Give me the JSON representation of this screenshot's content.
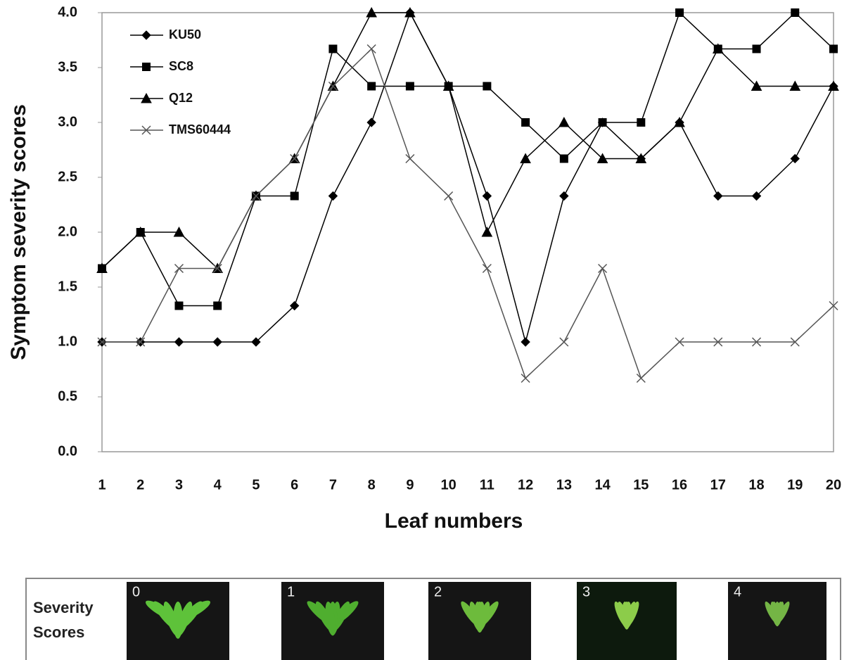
{
  "chart_data": {
    "type": "line",
    "x_label": "Leaf numbers",
    "y_label": "Symptom severity scores",
    "categories": [
      "1",
      "2",
      "3",
      "4",
      "5",
      "6",
      "7",
      "8",
      "9",
      "10",
      "11",
      "12",
      "13",
      "14",
      "15",
      "16",
      "17",
      "18",
      "19",
      "20"
    ],
    "ylim": [
      0,
      4
    ],
    "yticks": [
      {
        "value": 0,
        "label": "0.0"
      },
      {
        "value": 0.5,
        "label": "0.5"
      },
      {
        "value": 1,
        "label": "1.0"
      },
      {
        "value": 1.5,
        "label": "1.5"
      },
      {
        "value": 2,
        "label": "2.0"
      },
      {
        "value": 2.5,
        "label": "2.5"
      },
      {
        "value": 3,
        "label": "3.0"
      },
      {
        "value": 3.5,
        "label": "3.5"
      },
      {
        "value": 4,
        "label": "4.0"
      }
    ],
    "grid": false,
    "legend": "top-left",
    "series": [
      {
        "name": "KU50",
        "color": "#000000",
        "marker": "diamond",
        "values": [
          1,
          1,
          1,
          1,
          1,
          1.33,
          2.33,
          3,
          4,
          3.33,
          2.33,
          1,
          2.33,
          3,
          2.67,
          3,
          2.33,
          2.33,
          2.67,
          3.33
        ]
      },
      {
        "name": "SC8",
        "color": "#000000",
        "marker": "square",
        "values": [
          1.67,
          2,
          1.33,
          1.33,
          2.33,
          2.33,
          3.67,
          3.33,
          3.33,
          3.33,
          3.33,
          3,
          2.67,
          3,
          3,
          4,
          3.67,
          3.67,
          4,
          3.67
        ]
      },
      {
        "name": "Q12",
        "color": "#000000",
        "marker": "triangle",
        "values": [
          1.67,
          2,
          2,
          1.67,
          2.33,
          2.67,
          3.33,
          4,
          4,
          3.33,
          2,
          2.67,
          3,
          2.67,
          2.67,
          3,
          3.67,
          3.33,
          3.33,
          3.33
        ]
      },
      {
        "name": "TMS60444",
        "color": "#555555",
        "marker": "x",
        "values": [
          1,
          1,
          1.67,
          1.67,
          2.33,
          2.67,
          3.33,
          3.67,
          2.67,
          2.33,
          1.67,
          0.67,
          1,
          1.67,
          0.67,
          1,
          1,
          1,
          1,
          1.33
        ]
      }
    ]
  },
  "severity_panel": {
    "label_lines": [
      "Severity",
      "Scores"
    ],
    "scores": [
      "0",
      "1",
      "2",
      "3",
      "4"
    ]
  }
}
